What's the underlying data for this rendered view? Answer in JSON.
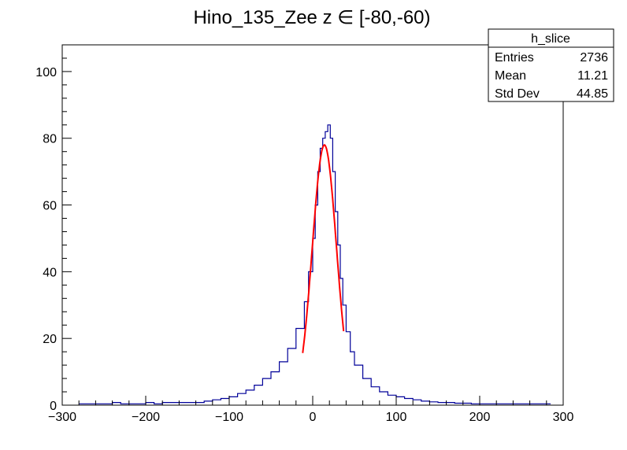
{
  "chart_data": {
    "type": "histogram",
    "title": "Hino_135_Zee z  ∈ [-80,-60)",
    "xlabel": "",
    "ylabel": "",
    "xlim": [
      -300,
      300
    ],
    "ylim": [
      0,
      108
    ],
    "x_ticks": [
      -300,
      -200,
      -100,
      0,
      100,
      200,
      300
    ],
    "x_tick_labels": [
      "−300",
      "−200",
      "−100",
      "0",
      "100",
      "200",
      "300"
    ],
    "y_ticks": [
      0,
      20,
      40,
      60,
      80,
      100
    ],
    "y_tick_labels": [
      "0",
      "20",
      "40",
      "60",
      "80",
      "100"
    ],
    "grid": false,
    "stats_box": {
      "title": "h_slice",
      "rows": [
        {
          "label": "Entries",
          "value": "2736"
        },
        {
          "label": "Mean",
          "value": "11.21"
        },
        {
          "label": "Std Dev",
          "value": "44.85"
        }
      ]
    },
    "series": [
      {
        "kind": "histogram-profile",
        "color": "#000099",
        "x": [
          -280,
          -270,
          -250,
          -240,
          -230,
          -220,
          -210,
          -200,
          -190,
          -180,
          -170,
          -160,
          -150,
          -140,
          -130,
          -120,
          -110,
          -100,
          -90,
          -80,
          -70,
          -60,
          -50,
          -40,
          -30,
          -20,
          -10,
          -5,
          0,
          3,
          6,
          9,
          12,
          15,
          18,
          21,
          24,
          27,
          30,
          33,
          36,
          40,
          45,
          50,
          60,
          70,
          80,
          90,
          100,
          110,
          120,
          130,
          140,
          150,
          160,
          170,
          180,
          190,
          200,
          220,
          240,
          260,
          280
        ],
        "y": [
          0.4,
          0.4,
          0.4,
          0.8,
          0.4,
          0.4,
          0.4,
          0.8,
          0.4,
          0.8,
          0.8,
          0.8,
          0.8,
          0.8,
          1.2,
          1.6,
          2,
          2.5,
          3.5,
          4.5,
          6,
          8,
          10,
          13,
          17,
          23,
          31,
          40,
          50,
          60,
          70,
          77,
          80,
          82,
          84,
          80,
          70,
          58,
          48,
          38,
          30,
          22,
          16,
          12,
          8,
          5.5,
          4,
          3,
          2.5,
          2,
          1.6,
          1.2,
          1,
          0.8,
          0.8,
          0.6,
          0.6,
          0.4,
          0.4,
          0.4,
          0.4,
          0.4,
          0.4
        ]
      },
      {
        "kind": "fit",
        "color": "#ff0000",
        "x_range": [
          -12,
          37
        ],
        "mean": 14,
        "sigma": 14.5,
        "peak": 78
      }
    ]
  }
}
